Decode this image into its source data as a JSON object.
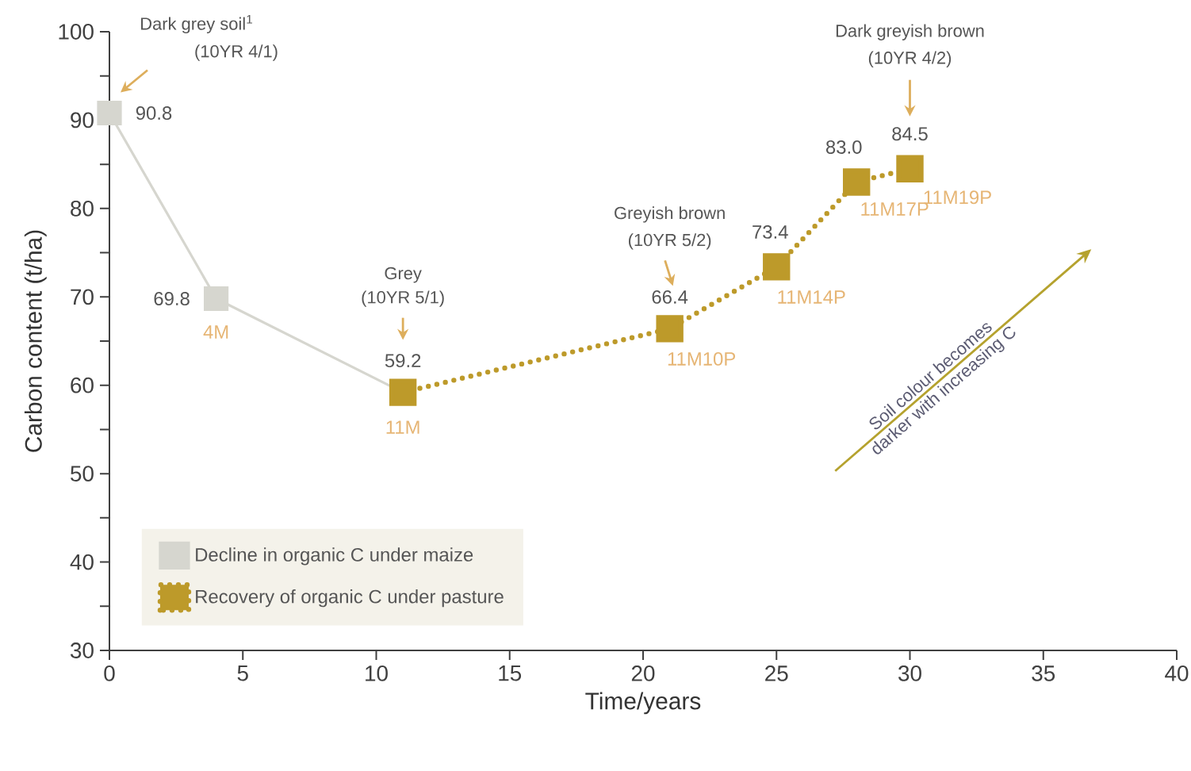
{
  "chart_data": {
    "type": "line",
    "xlabel": "Time/years",
    "ylabel": "Carbon content (t/ha)",
    "series": [
      {
        "name": "Decline in organic C under maize",
        "color": "#d6d6cf",
        "x": [
          0,
          4,
          11
        ],
        "values": [
          90.8,
          69.8,
          59.2
        ],
        "value_labels": [
          "90.8",
          "69.8",
          "59.2"
        ],
        "line_style": "solid"
      },
      {
        "name": "Recovery of organic C under pasture",
        "color": "#bd9a2a",
        "x": [
          11,
          21,
          25,
          28,
          30
        ],
        "values": [
          59.2,
          66.4,
          73.4,
          83.0,
          84.5
        ],
        "value_labels": [
          null,
          "66.4",
          "73.4",
          "83.0",
          "84.5"
        ],
        "line_style": "dotted"
      }
    ],
    "xlim": [
      0,
      40
    ],
    "xticks": [
      0,
      5,
      10,
      15,
      20,
      25,
      30,
      35,
      40
    ],
    "ylim": [
      30,
      100
    ],
    "yticks": [
      30,
      {
        "value": 35,
        "label": null
      },
      40,
      {
        "value": 45,
        "label": null
      },
      50,
      {
        "value": 55,
        "label": null
      },
      60,
      {
        "value": 65,
        "label": null
      },
      70,
      {
        "value": 75,
        "label": null
      },
      80,
      {
        "value": 85,
        "label": null
      },
      90,
      {
        "value": 95,
        "label": null
      },
      100
    ],
    "marker": "square",
    "legend": "bottom left",
    "annotations": [
      "Dark grey soil$^{1}$",
      "(10YR 4/1)",
      "Grey",
      "(10YR 5/1)",
      "Greyish brown",
      "(10YR 5/2)",
      "Dark greyish brown",
      "(10YR 4/2)",
      {
        "text": "4M",
        "x": 4,
        "y": 69.8
      },
      {
        "text": "11M",
        "x": 11,
        "y": 59.2
      },
      {
        "text": "11M10P",
        "x": 21,
        "y": 66.4
      },
      {
        "text": "11M14P",
        "x": 25,
        "y": 73.4
      },
      {
        "text": "11M17P",
        "x": 28,
        "y": 83.0
      },
      {
        "text": "11M19P",
        "x": 30,
        "y": 84.5
      },
      "Soil colour becomes",
      "darker with increasing C"
    ]
  }
}
